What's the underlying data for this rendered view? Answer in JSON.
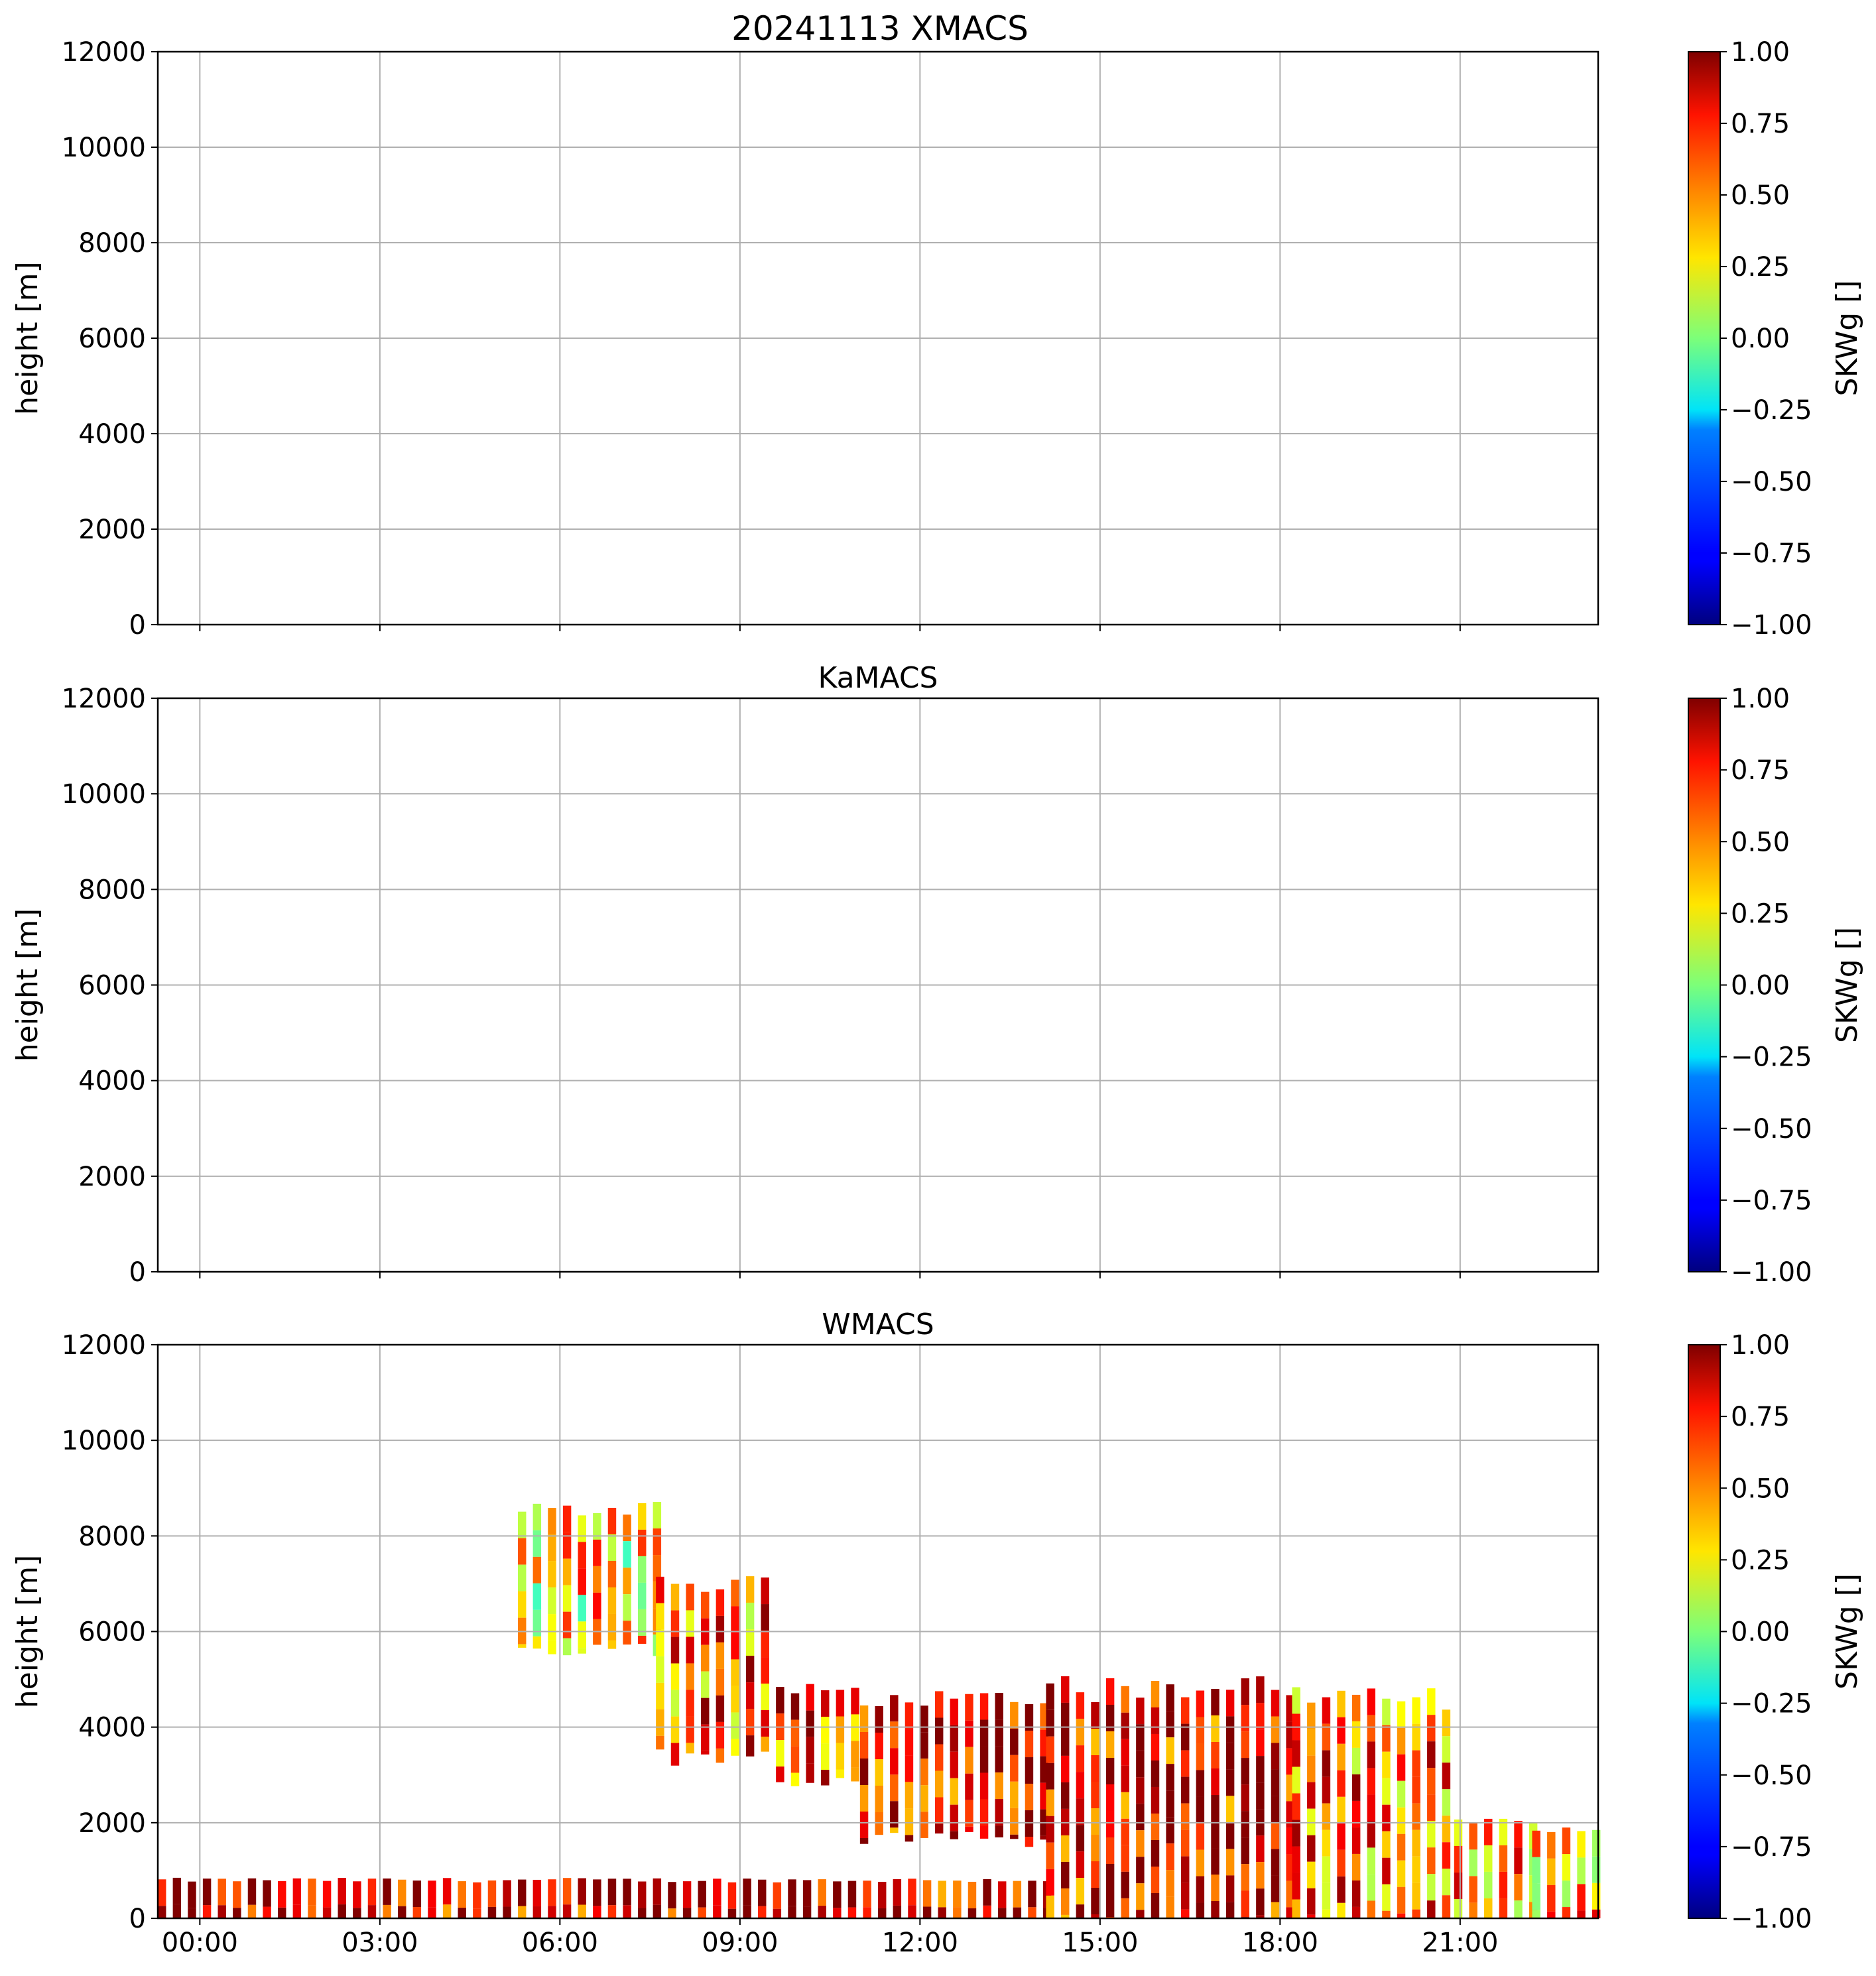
{
  "figure": {
    "title": "20241113 XMACS"
  },
  "chart_data": [
    {
      "type": "heatmap",
      "title": "20241113 XMACS",
      "ylabel": "height [m]",
      "ylim": [
        0,
        12000
      ],
      "yticks": [
        "0",
        "2000",
        "4000",
        "6000",
        "8000",
        "10000",
        "12000"
      ],
      "xlim_hours": [
        -0.7,
        23.3
      ],
      "xticks": [
        0,
        3,
        6,
        9,
        12,
        15,
        18,
        21
      ],
      "show_xticklabels": false,
      "grid": true,
      "colorbar": {
        "label": "SKWg []",
        "range": [
          -1.0,
          1.0
        ],
        "ticks": [
          "1.00",
          "0.75",
          "0.50",
          "0.25",
          "0.00",
          "−0.25",
          "−0.50",
          "−0.75",
          "−1.00"
        ]
      },
      "data": "none"
    },
    {
      "type": "heatmap",
      "title": "KaMACS",
      "ylabel": "height [m]",
      "ylim": [
        0,
        12000
      ],
      "yticks": [
        "0",
        "2000",
        "4000",
        "6000",
        "8000",
        "10000",
        "12000"
      ],
      "xlim_hours": [
        -0.7,
        23.3
      ],
      "xticks": [
        0,
        3,
        6,
        9,
        12,
        15,
        18,
        21
      ],
      "show_xticklabels": false,
      "grid": true,
      "colorbar": {
        "label": "SKWg []",
        "range": [
          -1.0,
          1.0
        ],
        "ticks": [
          "1.00",
          "0.75",
          "0.50",
          "0.25",
          "0.00",
          "−0.25",
          "−0.50",
          "−0.75",
          "−1.00"
        ]
      },
      "data": "none"
    },
    {
      "type": "heatmap",
      "title": "WMACS",
      "ylabel": "height [m]",
      "ylim": [
        0,
        12000
      ],
      "yticks": [
        "0",
        "2000",
        "4000",
        "6000",
        "8000",
        "10000",
        "12000"
      ],
      "xlim_hours": [
        -0.7,
        23.3
      ],
      "xticks": [
        0,
        3,
        6,
        9,
        12,
        15,
        18,
        21
      ],
      "xticklabels": [
        "00:00",
        "03:00",
        "06:00",
        "09:00",
        "12:00",
        "15:00",
        "18:00",
        "21:00"
      ],
      "show_xticklabels": true,
      "grid": true,
      "colorbar": {
        "label": "SKWg []",
        "range": [
          -1.0,
          1.0
        ],
        "ticks": [
          "1.00",
          "0.75",
          "0.50",
          "0.25",
          "0.00",
          "−0.25",
          "−0.50",
          "−0.75",
          "−1.00"
        ]
      },
      "stripe_interval_hours": 0.25,
      "low_layer": {
        "t_start": -0.7,
        "t_end": 14.1,
        "top_m": 800,
        "skew_mean": 0.85
      },
      "features": [
        {
          "t_start": 5.3,
          "t_end": 7.6,
          "bottom_m": 5500,
          "top_m": 8600,
          "skew_mean": 0.3
        },
        {
          "t_start": 7.6,
          "t_end": 9.6,
          "bottom_m": 3300,
          "top_m": 7000,
          "skew_mean": 0.55
        },
        {
          "t_start": 9.6,
          "t_end": 11.0,
          "bottom_m": 2800,
          "top_m": 4800,
          "skew_mean": 0.65
        },
        {
          "t_start": 11.0,
          "t_end": 14.1,
          "bottom_m": 1600,
          "top_m": 4600,
          "skew_mean": 0.8
        },
        {
          "t_start": 14.1,
          "t_end": 18.2,
          "bottom_m": 0,
          "top_m": 4800,
          "skew_mean": 0.8
        },
        {
          "t_start": 18.2,
          "t_end": 20.9,
          "bottom_m": 0,
          "top_m": 4600,
          "skew_mean": 0.55
        },
        {
          "t_start": 20.9,
          "t_end": 22.2,
          "bottom_m": 0,
          "top_m": 2000,
          "skew_mean": 0.5
        },
        {
          "t_start": 22.2,
          "t_end": 23.3,
          "bottom_m": 0,
          "top_m": 1900,
          "skew_mean": 0.45
        }
      ]
    }
  ]
}
